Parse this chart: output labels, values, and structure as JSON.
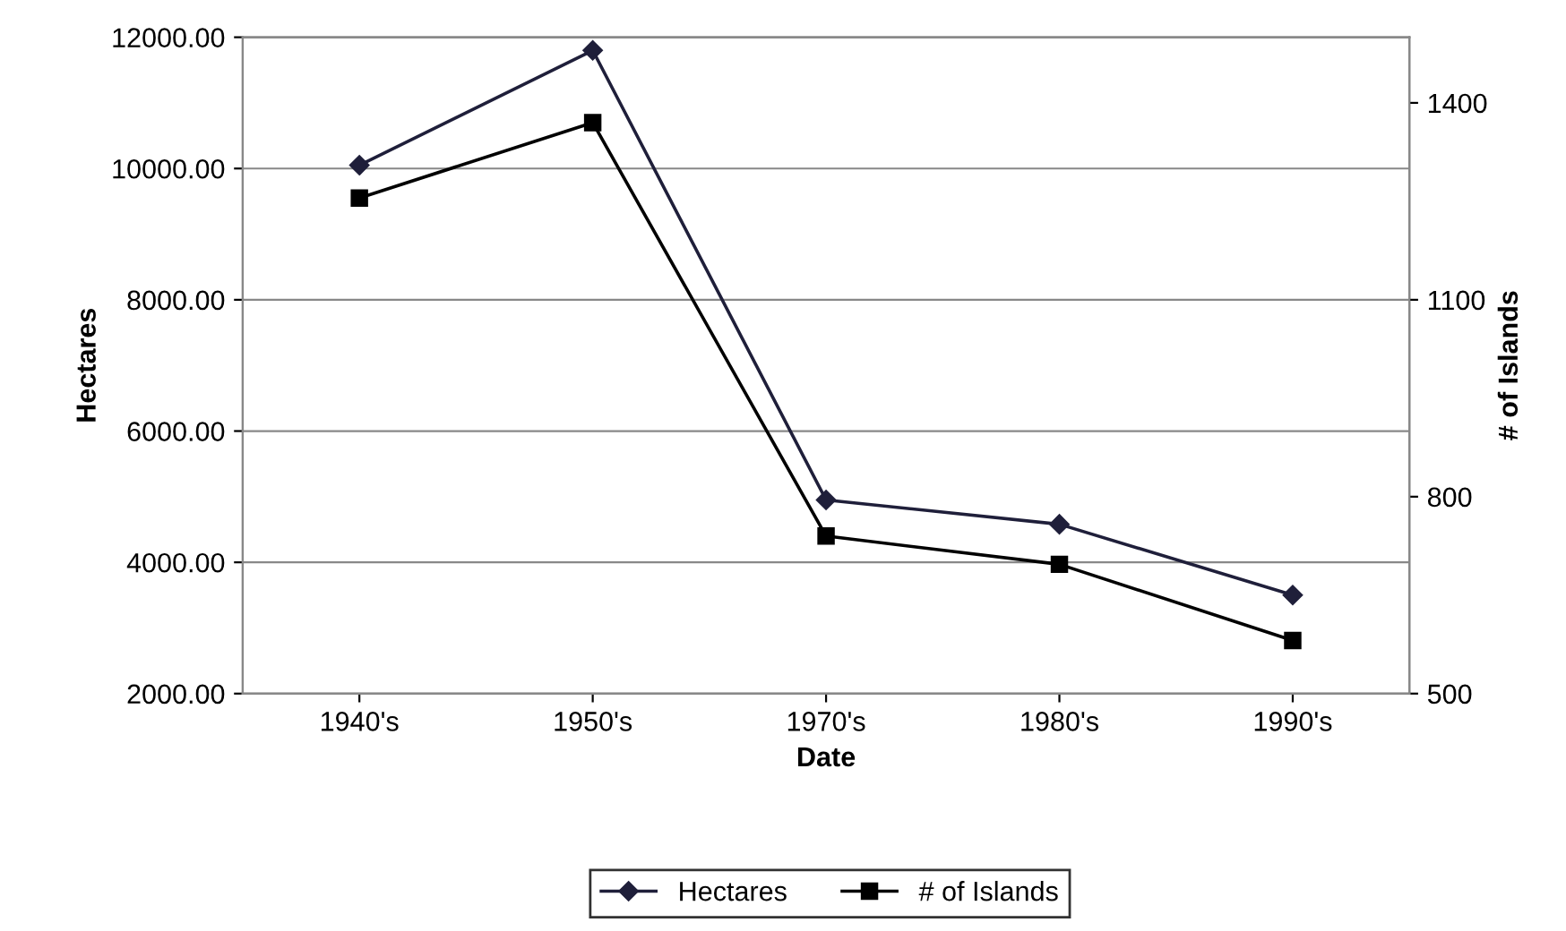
{
  "chart_data": {
    "type": "line",
    "xlabel": "Date",
    "ylabel": "Hectares",
    "y2label": "# of Islands",
    "categories": [
      "1940's",
      "1950's",
      "1970's",
      "1980's",
      "1990's"
    ],
    "series": [
      {
        "name": "Hectares",
        "color": "#1f1f3a",
        "marker": "diamond",
        "values": [
          10050,
          11800,
          4950,
          4580,
          3500
        ]
      },
      {
        "name": "# of Islands",
        "color": "#000000",
        "marker": "square",
        "axis": "y2",
        "values": [
          1255,
          1370,
          740,
          697,
          581
        ]
      }
    ],
    "ylim": [
      2000,
      12000
    ],
    "yticks": [
      {
        "value": 2000,
        "label": "2000.00"
      },
      {
        "value": 4000,
        "label": "4000.00"
      },
      {
        "value": 6000,
        "label": "6000.00"
      },
      {
        "value": 8000,
        "label": "8000.00"
      },
      {
        "value": 10000,
        "label": "10000.00"
      },
      {
        "value": 12000,
        "label": "12000.00"
      }
    ],
    "y2lim": [
      500,
      1500
    ],
    "y2ticks": [
      500,
      800,
      1100,
      1400
    ],
    "grid": "y",
    "legend": "bottom",
    "line_style": "solid"
  }
}
